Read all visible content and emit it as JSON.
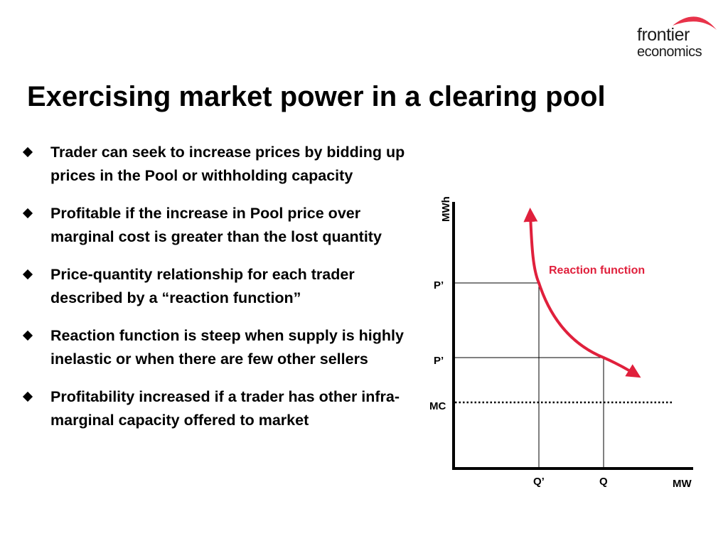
{
  "logo": {
    "line1": "frontier",
    "line2": "economics",
    "accent_color": "#e8334a"
  },
  "title": "Exercising market power in a clearing pool",
  "bullets": [
    "Trader can seek to increase prices by bidding up prices in the Pool or withholding capacity",
    "Profitable if the increase in Pool price over marginal cost is greater than the lost quantity",
    "Price-quantity relationship for each trader described by a “reaction function”",
    "Reaction function is steep when supply is highly inelastic or when there are few other sellers",
    "Profitability increased if a trader has other infra-marginal capacity offered to market"
  ],
  "diagram": {
    "y_axis_label": "MWh",
    "x_axis_label": "MW",
    "price_label_1": "P’",
    "price_label_2": "P’",
    "mc_label": "MC",
    "quantity_label_1": "Q’",
    "quantity_label_2": "Q",
    "curve_label": "Reaction function",
    "curve_color": "#e0203c"
  }
}
